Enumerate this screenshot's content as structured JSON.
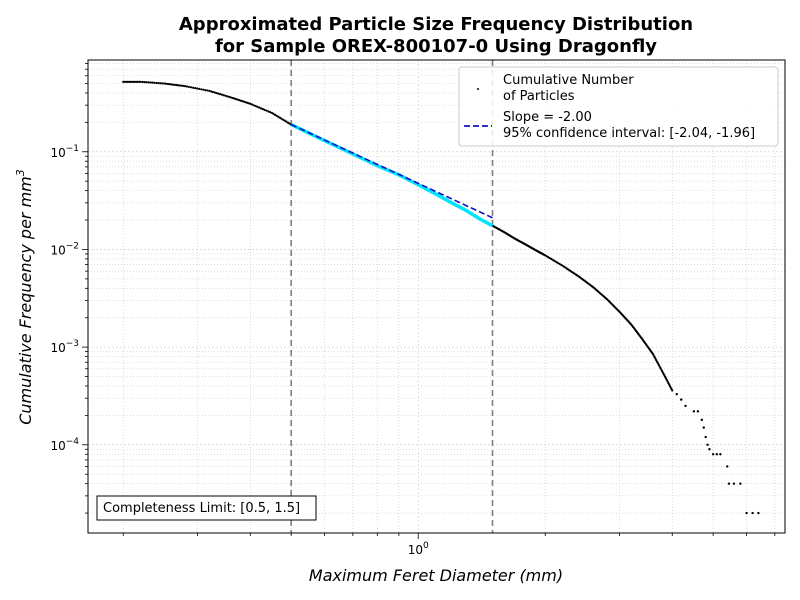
{
  "chart_data": {
    "type": "scatter",
    "title_line1": "Approximated Particle Size Frequency Distribution",
    "title_line2": "for Sample OREX-800107-0 Using Dragonfly",
    "xlabel": "Maximum Feret Diameter (mm)",
    "ylabel_main": "Cumulative Frequency per mm",
    "ylabel_sup": "3",
    "xscale": "log",
    "yscale": "log",
    "grid": true,
    "xlim": [
      0.165,
      7.4
    ],
    "ylim": [
      1.25e-05,
      0.87
    ],
    "x_tick_labels": [
      {
        "value": 1,
        "base": "10",
        "exp": "0"
      }
    ],
    "y_tick_labels": [
      {
        "value": 0.1,
        "base": "10",
        "exp": "−1"
      },
      {
        "value": 0.01,
        "base": "10",
        "exp": "−2"
      },
      {
        "value": 0.001,
        "base": "10",
        "exp": "−3"
      },
      {
        "value": 0.0001,
        "base": "10",
        "exp": "−4"
      }
    ],
    "legend_position": "top-right",
    "legend": {
      "scatter_line1": "Cumulative Number",
      "scatter_line2": "of Particles",
      "fit_line1": "Slope = -2.00",
      "fit_line2": "95% confidence interval: [-2.04, -1.96]"
    },
    "completeness_label": "Completeness Limit: [0.5, 1.5]",
    "completeness_limits": [
      0.5,
      1.5
    ],
    "series": [
      {
        "name": "Cumulative Number of Particles",
        "kind": "scatter",
        "color": "#000000",
        "x": [
          0.2,
          0.22,
          0.25,
          0.28,
          0.32,
          0.36,
          0.4,
          0.45,
          0.5,
          0.6,
          0.7,
          0.8,
          0.9,
          1.0,
          1.1,
          1.2,
          1.3,
          1.4,
          1.5,
          1.6,
          1.7,
          1.8,
          1.9,
          2.0,
          2.2,
          2.4,
          2.6,
          2.8,
          3.0,
          3.2,
          3.4,
          3.6,
          3.8,
          4.0
        ],
        "y": [
          0.52,
          0.52,
          0.5,
          0.47,
          0.42,
          0.36,
          0.31,
          0.25,
          0.19,
          0.13,
          0.095,
          0.072,
          0.058,
          0.046,
          0.037,
          0.03,
          0.025,
          0.0205,
          0.0175,
          0.015,
          0.0128,
          0.0112,
          0.0098,
          0.0087,
          0.0068,
          0.0053,
          0.0041,
          0.0031,
          0.0023,
          0.0017,
          0.0012,
          0.00085,
          0.00055,
          0.00036
        ]
      },
      {
        "name": "Cumulative Number of Particles",
        "kind": "scatter-tail",
        "color": "#000000",
        "points": [
          [
            4.1,
            0.00033
          ],
          [
            4.2,
            0.00029
          ],
          [
            4.3,
            0.00025
          ],
          [
            4.5,
            0.00022
          ],
          [
            4.6,
            0.00022
          ],
          [
            4.7,
            0.00018
          ],
          [
            4.75,
            0.00015
          ],
          [
            4.8,
            0.00012
          ],
          [
            4.85,
            0.0001
          ],
          [
            4.9,
            9e-05
          ],
          [
            5.0,
            8e-05
          ],
          [
            5.1,
            8e-05
          ],
          [
            5.2,
            8e-05
          ],
          [
            5.4,
            6e-05
          ],
          [
            5.45,
            4e-05
          ],
          [
            5.6,
            4e-05
          ],
          [
            5.8,
            4e-05
          ],
          [
            6.0,
            2e-05
          ],
          [
            6.2,
            2e-05
          ],
          [
            6.4,
            2e-05
          ]
        ]
      },
      {
        "name": "highlighted completeness range",
        "kind": "line",
        "color": "#00e5ff",
        "x": [
          0.5,
          0.6,
          0.7,
          0.8,
          0.9,
          1.0,
          1.1,
          1.2,
          1.3,
          1.4,
          1.5
        ],
        "y": [
          0.19,
          0.13,
          0.095,
          0.072,
          0.058,
          0.046,
          0.037,
          0.03,
          0.025,
          0.0205,
          0.0175
        ]
      },
      {
        "name": "Slope = -2.00",
        "kind": "fit",
        "color": "#1010c0",
        "slope": -2.0,
        "x": [
          0.5,
          1.5
        ],
        "y": [
          0.19,
          0.0211
        ]
      }
    ],
    "vlines": [
      0.5,
      1.5
    ],
    "vline_color": "#808080"
  }
}
